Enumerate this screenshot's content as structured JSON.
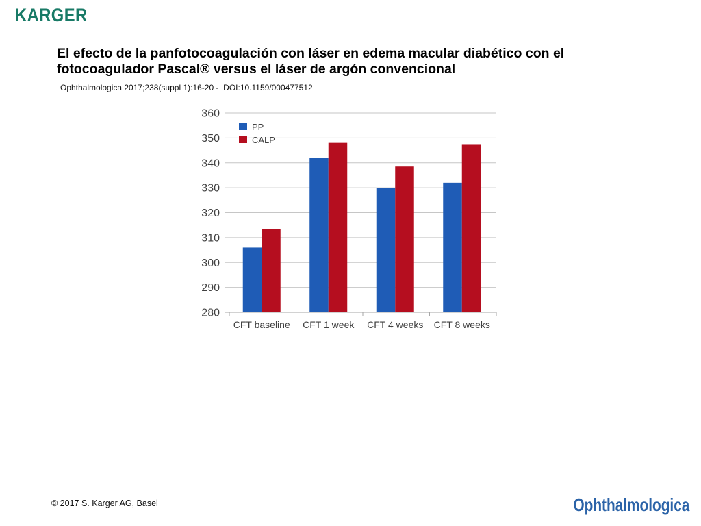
{
  "brand": {
    "logo_text": "KARGER",
    "color": "#187a66"
  },
  "header": {
    "title_lines": [
      "El efecto de la panfotocoagulación con láser en edema macular diabético con el",
      "fotocoagulador Pascal® versus el láser de argón convencional"
    ],
    "citation": "Ophthalmologica 2017;238(suppl 1):16-20 -  DOI:10.1159/000477512"
  },
  "chart_data": {
    "type": "bar",
    "categories": [
      "CFT baseline",
      "CFT 1 week",
      "CFT 4 weeks",
      "CFT 8 weeks"
    ],
    "series": [
      {
        "name": "PP",
        "color": "#1f5cb6",
        "values": [
          306,
          342,
          330,
          332
        ]
      },
      {
        "name": "CALP",
        "color": "#b50e1f",
        "values": [
          313.5,
          348,
          338.5,
          347.5
        ]
      }
    ],
    "ylim": [
      280,
      360
    ],
    "yticks": [
      280,
      290,
      300,
      310,
      320,
      330,
      340,
      350,
      360
    ],
    "grid": true
  },
  "footer": {
    "copyright": "© 2017 S. Karger AG, Basel",
    "journal_logo": "Ophthalmologica",
    "journal_logo_color": "#2b63a8"
  }
}
